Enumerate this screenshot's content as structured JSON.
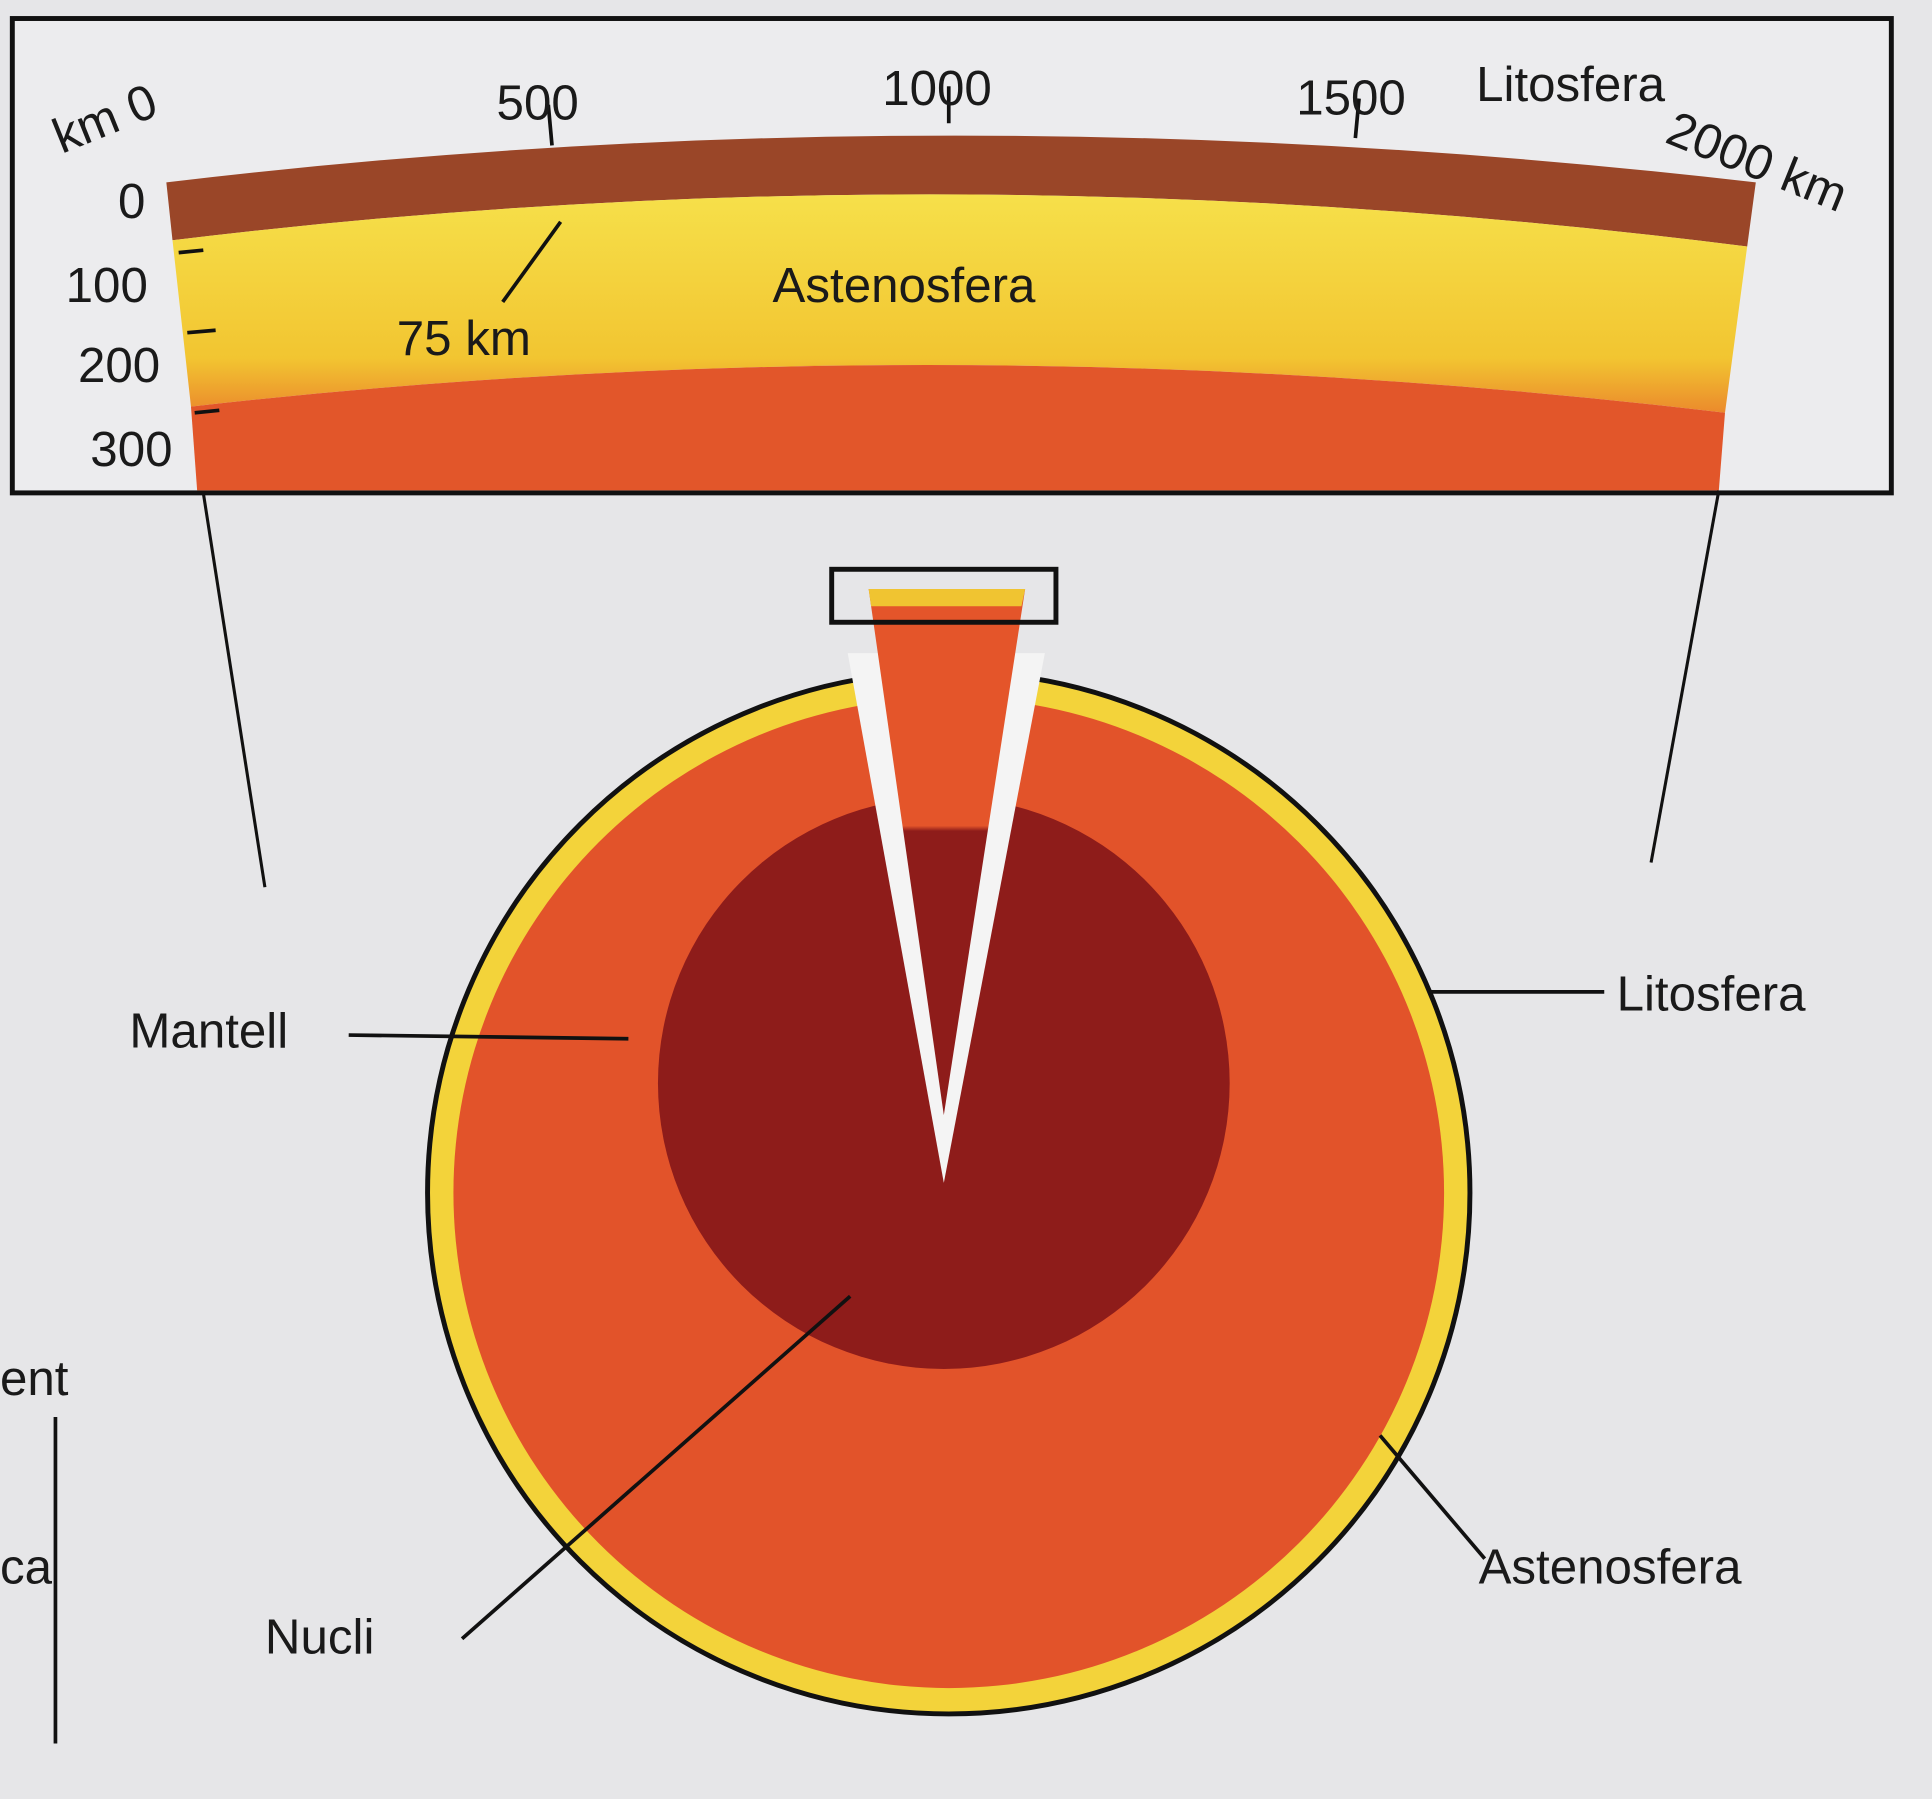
{
  "cross_section": {
    "top_scale": {
      "labels": [
        "km 0",
        "500",
        "1000",
        "1500",
        "2000 km"
      ]
    },
    "title": "Litosfera",
    "depth_scale": {
      "labels": [
        "0",
        "100",
        "200",
        "300"
      ]
    },
    "thickness": "75 km",
    "asthenosphere": "Astenosfera"
  },
  "globe": {
    "mantle": "Mantell",
    "lithosphere": "Litosfera",
    "core": "Nucli",
    "asthenosphere": "Astenosfera"
  },
  "margin_fragments": [
    "ent",
    "ca"
  ]
}
